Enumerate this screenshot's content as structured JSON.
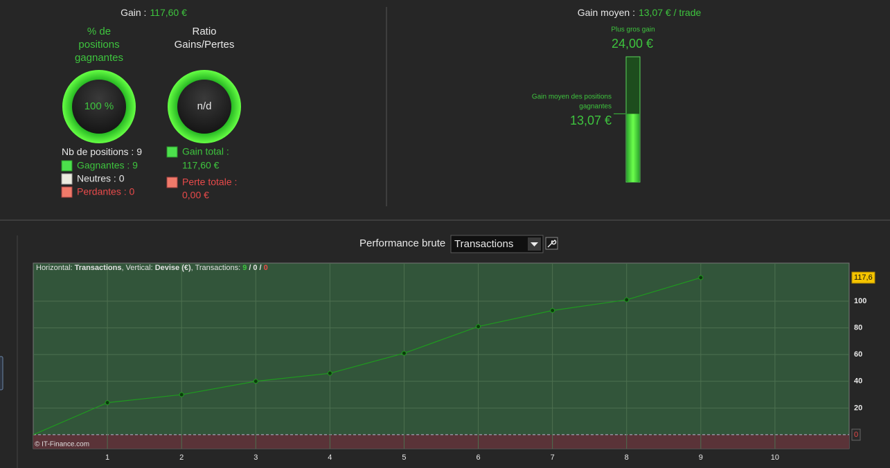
{
  "summary": {
    "gain_label": "Gain :",
    "gain_value": "117,60 €",
    "win_rate": {
      "title": [
        "% de",
        "positions",
        "gagnantes"
      ],
      "value": "100 %"
    },
    "ratio": {
      "title": [
        "Ratio",
        "Gains/Pertes"
      ],
      "value": "n/d"
    },
    "positions_label": "Nb de positions :",
    "positions_count": "9",
    "winners": "Gagnantes : 9",
    "neutral": "Neutres : 0",
    "losers": "Perdantes : 0",
    "total_gain": [
      "Gain total :",
      "117,60 €"
    ],
    "total_loss": [
      "Perte totale :",
      "0,00 €"
    ]
  },
  "average": {
    "label": "Gain moyen :",
    "value": "13,07 € / trade",
    "max_title": "Plus gros gain",
    "max_gain": {
      "value": 24,
      "label": "24,00 €"
    },
    "avg_title": [
      "Gain moyen des positions",
      "gagnantes"
    ],
    "avg_gain": {
      "value": 13.07,
      "label": "13,07 €"
    }
  },
  "performance": {
    "title": "Performance brute",
    "selector": "Transactions",
    "info": [
      {
        "text": "Horizontal:",
        "style": "plain"
      },
      {
        "text": "Transactions",
        "style": "bold"
      },
      {
        "text": ", Vertical:",
        "style": "plain"
      },
      {
        "text": "Devise (€)",
        "style": "bold"
      },
      {
        "text": ", Transactions:",
        "style": "plain"
      },
      {
        "text": "9",
        "style": "green"
      },
      {
        "text": "/",
        "style": "bold"
      },
      {
        "text": "0",
        "style": "bold"
      },
      {
        "text": "/",
        "style": "bold"
      },
      {
        "text": "0",
        "style": "red"
      }
    ],
    "copyright": "© IT-Finance.com",
    "chart_data": {
      "type": "line",
      "x": [
        0,
        1,
        2,
        3,
        4,
        5,
        6,
        7,
        8,
        9
      ],
      "values": [
        0,
        24,
        30,
        40,
        46,
        61,
        81,
        93,
        101,
        117.6
      ],
      "color": "#1f9a1f",
      "xlim": [
        0,
        11
      ],
      "ylim": [
        -10.4,
        128.5
      ],
      "xticks": [
        1,
        2,
        3,
        4,
        5,
        6,
        7,
        8,
        9,
        10
      ],
      "yticks": [
        20,
        40,
        60,
        80,
        100
      ],
      "grid": true,
      "markers": [
        {
          "value": 117.6,
          "label": "117,6",
          "color": "#f5c400"
        },
        {
          "value": 0,
          "label": "0",
          "color": "#e84a4a"
        }
      ]
    }
  }
}
